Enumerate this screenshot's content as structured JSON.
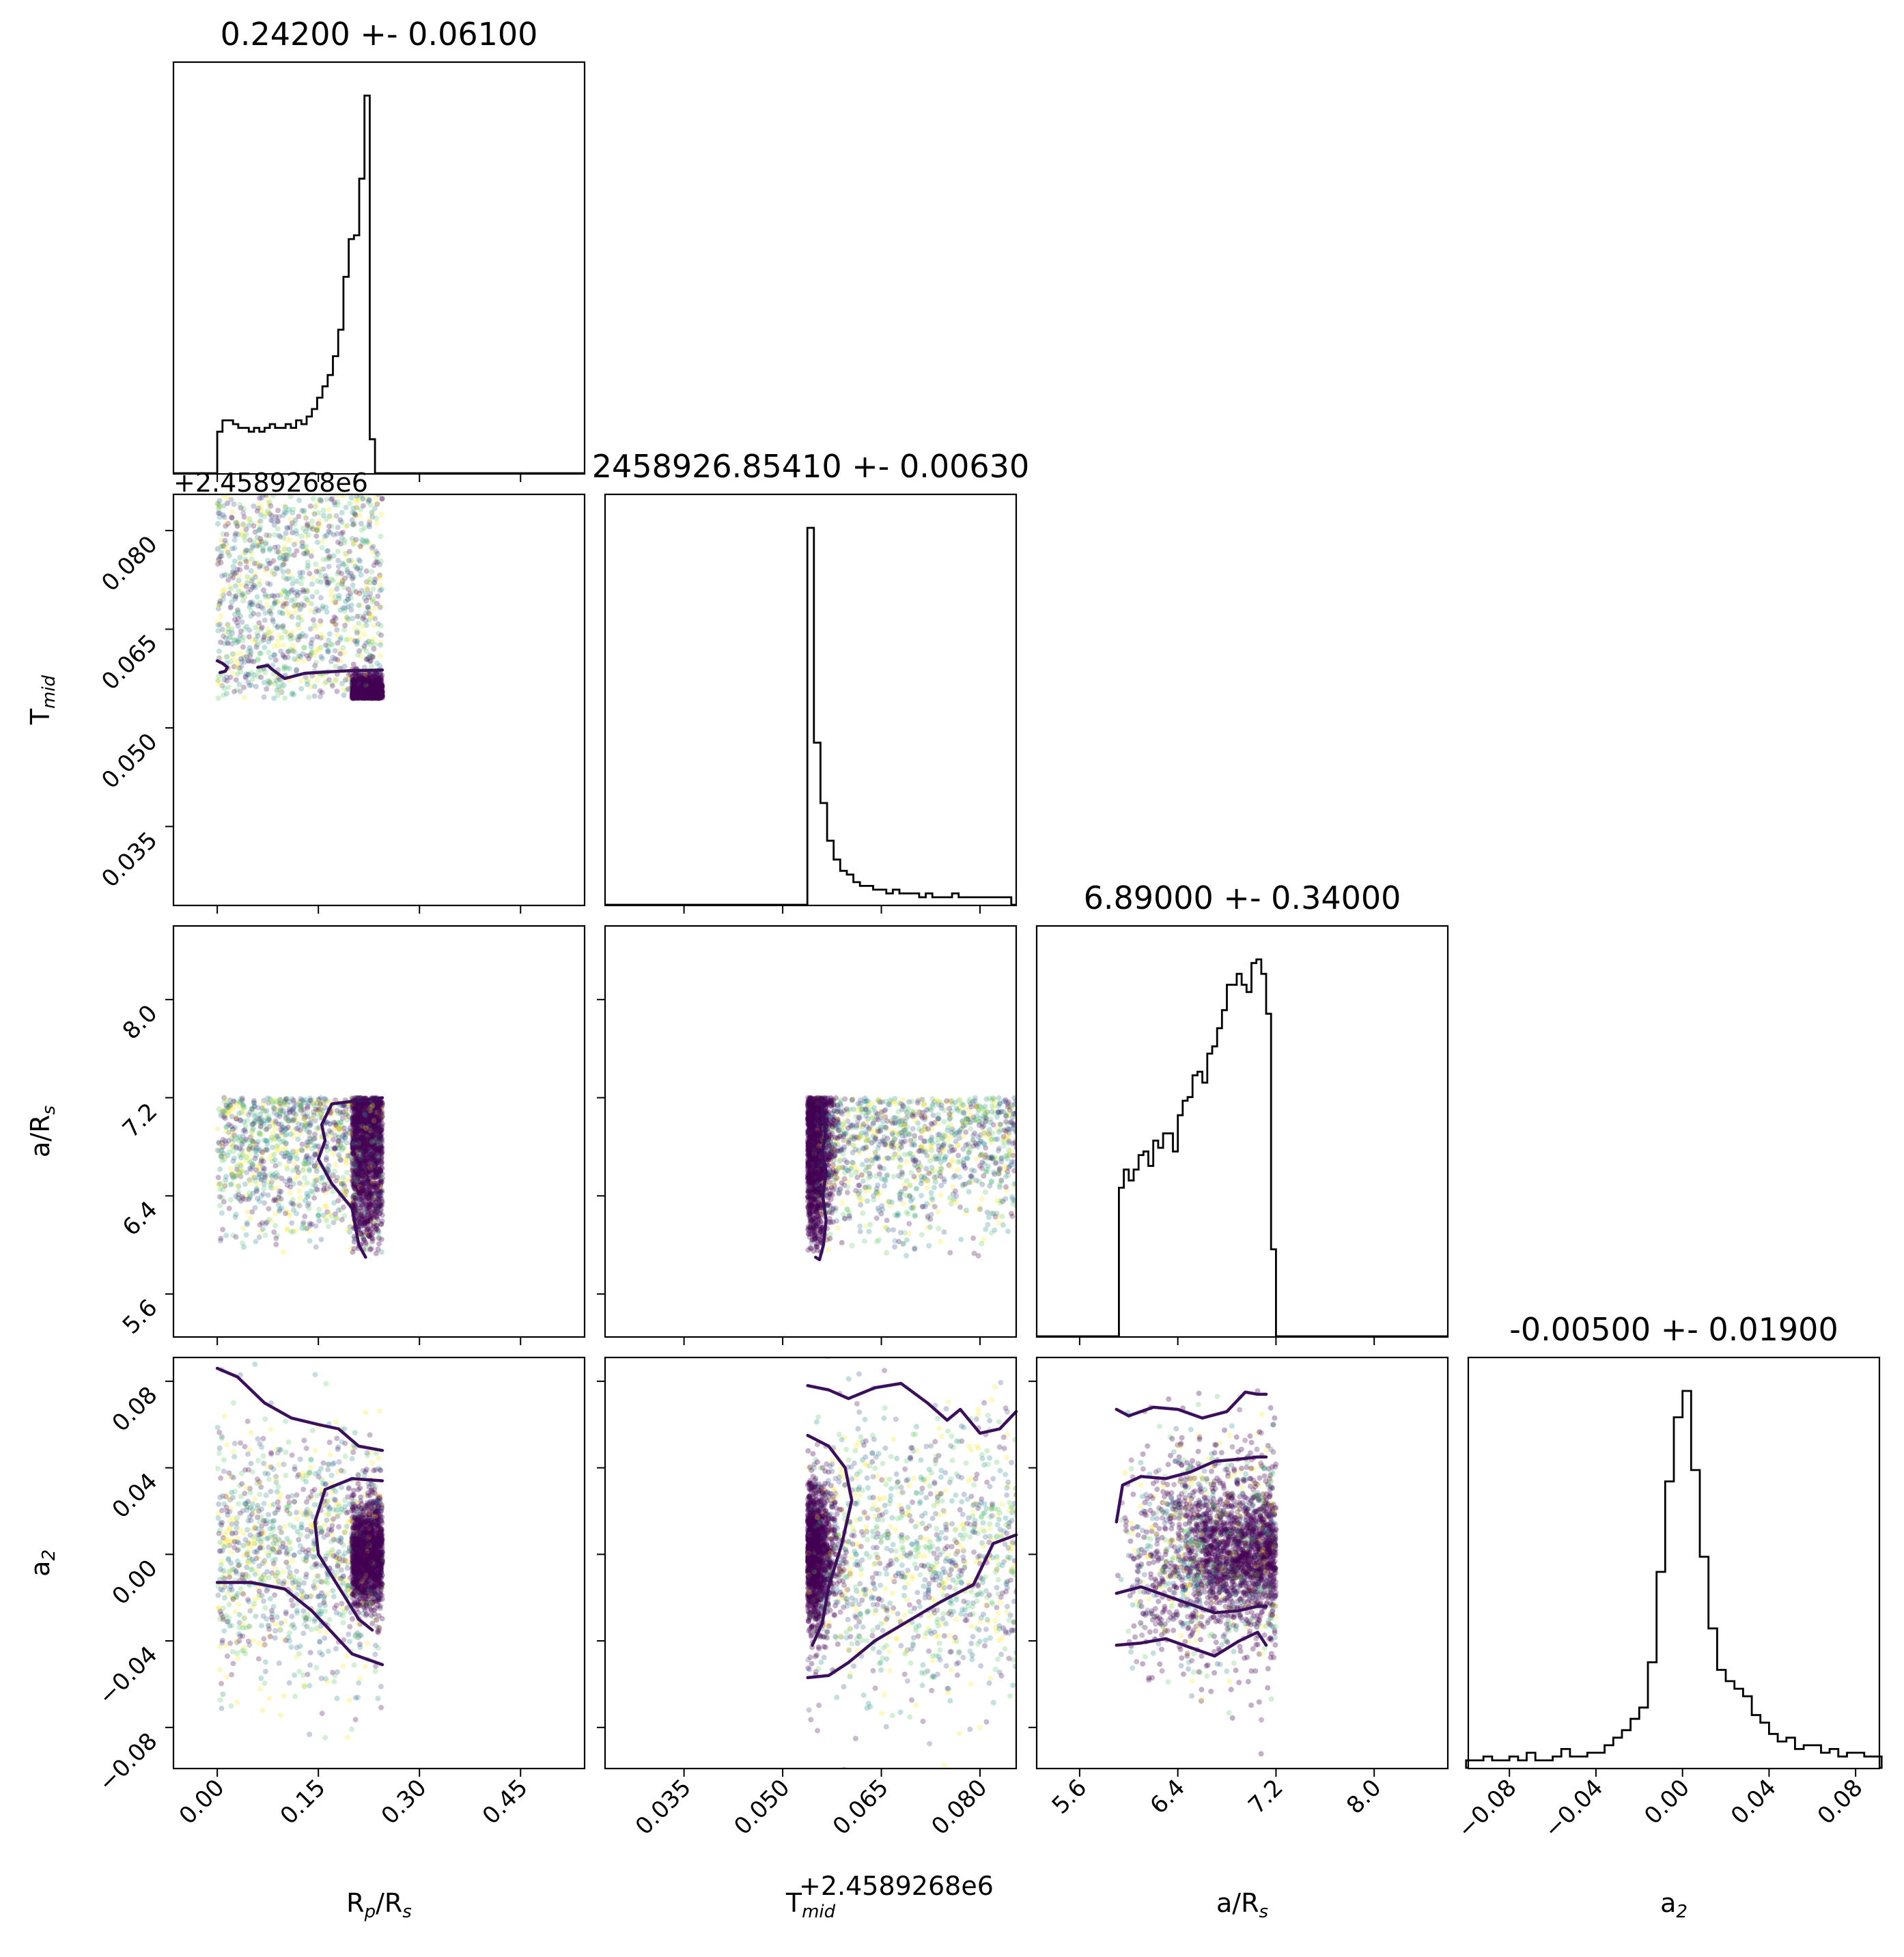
{
  "chart_data": {
    "type": "scatter",
    "description_type": "corner",
    "params": [
      {
        "key": "rp",
        "label": "R",
        "sub": "p",
        "label_suffix": "/R",
        "sub2": "s",
        "ticks": [
          0.0,
          0.15,
          0.3,
          0.45
        ],
        "tick_labels": [
          "0.00",
          "0.15",
          "0.30",
          "0.45"
        ],
        "range": [
          -0.065,
          0.545
        ]
      },
      {
        "key": "tmid",
        "label": "T",
        "sub": "mid",
        "label_suffix": "",
        "sub2": "",
        "ticks": [
          0.035,
          0.05,
          0.065,
          0.08
        ],
        "tick_labels": [
          "0.035",
          "0.050",
          "0.065",
          "0.080"
        ],
        "range": [
          0.023,
          0.0855
        ],
        "offset_text": "+2.4589268e6"
      },
      {
        "key": "ars",
        "label": "a/R",
        "sub": "s",
        "label_suffix": "",
        "sub2": "",
        "ticks": [
          5.6,
          6.4,
          7.2,
          8.0
        ],
        "tick_labels": [
          "5.6",
          "6.4",
          "7.2",
          "8.0"
        ],
        "range": [
          5.25,
          8.6
        ]
      },
      {
        "key": "a2",
        "label": "a",
        "sub": "2",
        "label_suffix": "",
        "sub2": "",
        "ticks": [
          -0.08,
          -0.04,
          0.0,
          0.04,
          0.08
        ],
        "tick_labels": [
          "−0.08",
          "−0.04",
          "0.00",
          "0.04",
          "0.08"
        ],
        "range": [
          -0.099,
          0.091
        ]
      }
    ],
    "titles": [
      "0.24200 +- 0.06100",
      "2458926.85410 +- 0.00630",
      "6.89000 +- 0.34000",
      "-0.00500 +- 0.01900"
    ],
    "histograms": [
      {
        "param": "rp",
        "bins": [
          0.0,
          0.0078,
          0.0156,
          0.0234,
          0.0312,
          0.039,
          0.0468,
          0.0546,
          0.0624,
          0.0702,
          0.078,
          0.0858,
          0.0936,
          0.1014,
          0.1092,
          0.117,
          0.1248,
          0.1326,
          0.1404,
          0.1482,
          0.156,
          0.1638,
          0.1716,
          0.1794,
          0.1872,
          0.195,
          0.2028,
          0.2106,
          0.2184,
          0.2262,
          0.234,
          0.242,
          0.25
        ],
        "counts": [
          0.11,
          0.14,
          0.14,
          0.13,
          0.12,
          0.12,
          0.11,
          0.12,
          0.11,
          0.12,
          0.13,
          0.12,
          0.12,
          0.13,
          0.12,
          0.14,
          0.13,
          0.15,
          0.17,
          0.2,
          0.23,
          0.26,
          0.31,
          0.38,
          0.52,
          0.62,
          0.63,
          0.78,
          1.0,
          0.09,
          0.0,
          0.0
        ]
      },
      {
        "param": "tmid",
        "bins": [
          0.05375,
          0.05475,
          0.05575,
          0.05675,
          0.05775,
          0.05875,
          0.05975,
          0.06075,
          0.06175,
          0.06275,
          0.06375,
          0.06475,
          0.06575,
          0.06675,
          0.06775,
          0.06875,
          0.06975,
          0.07075,
          0.07175,
          0.07275,
          0.07375,
          0.07475,
          0.07575,
          0.07675,
          0.07775,
          0.07875,
          0.07975,
          0.08075,
          0.08175,
          0.08275,
          0.08375,
          0.08475
        ],
        "counts": [
          1.0,
          0.43,
          0.27,
          0.17,
          0.12,
          0.09,
          0.08,
          0.06,
          0.05,
          0.05,
          0.04,
          0.04,
          0.03,
          0.04,
          0.03,
          0.03,
          0.03,
          0.02,
          0.03,
          0.02,
          0.02,
          0.02,
          0.03,
          0.02,
          0.02,
          0.02,
          0.02,
          0.02,
          0.02,
          0.02,
          0.02
        ]
      },
      {
        "param": "ars",
        "bins": [
          5.88,
          5.92,
          5.96,
          6.0,
          6.04,
          6.08,
          6.12,
          6.16,
          6.2,
          6.24,
          6.28,
          6.32,
          6.36,
          6.4,
          6.44,
          6.48,
          6.52,
          6.56,
          6.6,
          6.64,
          6.68,
          6.72,
          6.76,
          6.8,
          6.84,
          6.88,
          6.92,
          6.96,
          7.0,
          7.04,
          7.08,
          7.12,
          7.16,
          7.2
        ],
        "counts": [
          0.0,
          0.41,
          0.46,
          0.43,
          0.46,
          0.5,
          0.51,
          0.47,
          0.54,
          0.52,
          0.56,
          0.56,
          0.51,
          0.61,
          0.65,
          0.66,
          0.72,
          0.73,
          0.7,
          0.78,
          0.8,
          0.85,
          0.9,
          0.97,
          0.97,
          1.0,
          0.97,
          0.95,
          1.03,
          1.04,
          1.0,
          0.89,
          0.24,
          0.0
        ]
      },
      {
        "param": "a2",
        "bins": [
          -0.1,
          -0.096,
          -0.092,
          -0.088,
          -0.084,
          -0.08,
          -0.076,
          -0.072,
          -0.068,
          -0.064,
          -0.06,
          -0.056,
          -0.052,
          -0.048,
          -0.044,
          -0.04,
          -0.036,
          -0.032,
          -0.028,
          -0.024,
          -0.02,
          -0.016,
          -0.012,
          -0.008,
          -0.004,
          0.0,
          0.004,
          0.008,
          0.012,
          0.016,
          0.02,
          0.024,
          0.028,
          0.032,
          0.036,
          0.04,
          0.044,
          0.048,
          0.052,
          0.056,
          0.06,
          0.064,
          0.068,
          0.072,
          0.076,
          0.08,
          0.084,
          0.088,
          0.092
        ],
        "counts": [
          0.02,
          0.02,
          0.03,
          0.02,
          0.02,
          0.03,
          0.02,
          0.04,
          0.02,
          0.02,
          0.03,
          0.05,
          0.03,
          0.03,
          0.04,
          0.04,
          0.06,
          0.08,
          0.1,
          0.13,
          0.16,
          0.28,
          0.52,
          0.76,
          0.93,
          1.0,
          0.79,
          0.56,
          0.37,
          0.26,
          0.23,
          0.21,
          0.19,
          0.14,
          0.12,
          0.09,
          0.07,
          0.08,
          0.05,
          0.06,
          0.06,
          0.04,
          0.05,
          0.03,
          0.04,
          0.04,
          0.03,
          0.03
        ]
      }
    ],
    "scatter_panels": [
      {
        "x": "rp",
        "y": "tmid",
        "x_range": [
          0.0,
          0.245
        ],
        "y_range": [
          0.0545,
          0.0855
        ],
        "concentration": "low-y, high-x"
      },
      {
        "x": "rp",
        "y": "ars",
        "x_range": [
          0.0,
          0.245
        ],
        "y_range": [
          5.9,
          7.2
        ],
        "concentration": "high-x"
      },
      {
        "x": "tmid",
        "y": "ars",
        "x_range": [
          0.0538,
          0.0855
        ],
        "y_range": [
          5.9,
          7.2
        ],
        "concentration": "low-x"
      },
      {
        "x": "rp",
        "y": "a2",
        "x_range": [
          0.0,
          0.245
        ],
        "y_range": [
          -0.099,
          0.091
        ],
        "concentration": "high-x, y≈0"
      },
      {
        "x": "tmid",
        "y": "a2",
        "x_range": [
          0.0538,
          0.0855
        ],
        "y_range": [
          -0.099,
          0.091
        ],
        "concentration": "low-x, y≈0"
      },
      {
        "x": "ars",
        "y": "a2",
        "x_range": [
          5.88,
          7.2
        ],
        "y_range": [
          -0.099,
          0.091
        ],
        "concentration": "high-x, y≈0"
      }
    ],
    "colors": {
      "contour": "#3b0f5c",
      "points": [
        "#440154",
        "#3b528b",
        "#21918c",
        "#5ec962",
        "#fde725"
      ],
      "frame": "#000000"
    },
    "grid": false,
    "legend": "none"
  }
}
